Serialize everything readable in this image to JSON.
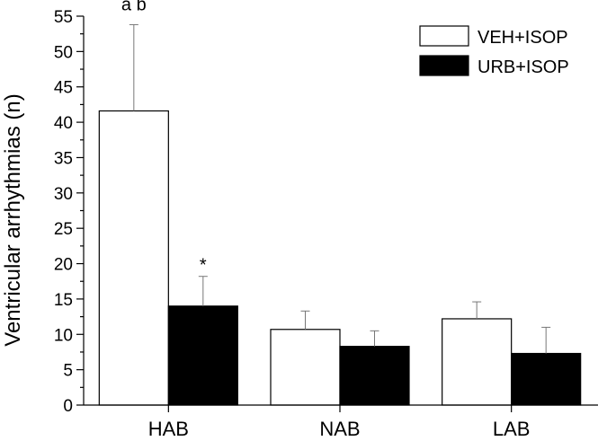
{
  "chart_data": {
    "type": "bar",
    "title": "",
    "xlabel": "",
    "ylabel": "Ventricular arrhythmias (n)",
    "ylim": [
      0,
      55
    ],
    "yticks": [
      0,
      5,
      10,
      15,
      20,
      25,
      30,
      35,
      40,
      45,
      50,
      55
    ],
    "grid": false,
    "legend_position": "top-right",
    "categories": [
      "HAB",
      "NAB",
      "LAB"
    ],
    "series": [
      {
        "name": "VEH+ISOP",
        "fill": "#ffffff",
        "values": [
          41.6,
          10.7,
          12.2
        ],
        "errors": [
          12.2,
          2.6,
          2.4
        ]
      },
      {
        "name": "URB+ISOP",
        "fill": "#000000",
        "values": [
          14.0,
          8.3,
          7.3
        ],
        "errors": [
          4.2,
          2.2,
          3.7
        ]
      }
    ],
    "annotations": [
      {
        "text": "a b",
        "category_index": 0,
        "series_index": 0
      },
      {
        "text": "*",
        "category_index": 0,
        "series_index": 1
      }
    ]
  }
}
